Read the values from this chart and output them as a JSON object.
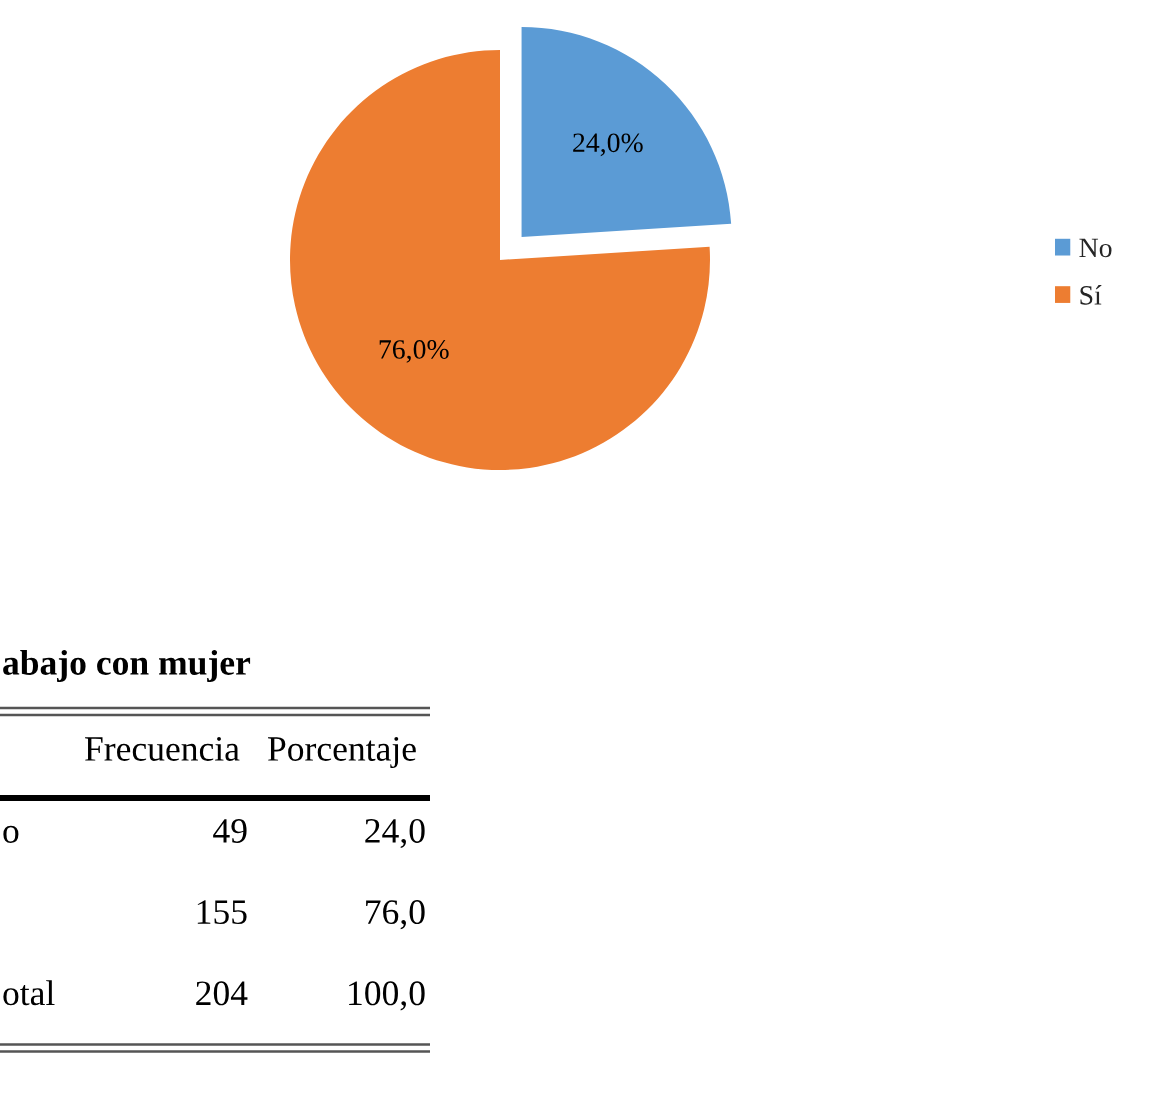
{
  "chart_data": [
    {
      "type": "pie",
      "categories": [
        "No",
        "Sí"
      ],
      "values": [
        24.0,
        76.0
      ],
      "colors": [
        "#5b9bd5",
        "#ed7d31"
      ],
      "value_labels": [
        "24,0%",
        "76,0%"
      ],
      "legend": "right"
    },
    {
      "type": "other",
      "title": "abajo con mujer",
      "categories": [
        "Frecuencia",
        "Porcentaje"
      ],
      "y_categories": [
        "o",
        null,
        "otal"
      ],
      "cell_labels": [
        [
          "49",
          "24,0"
        ],
        [
          "155",
          "76,0"
        ],
        [
          "204",
          "100,0"
        ]
      ]
    }
  ]
}
